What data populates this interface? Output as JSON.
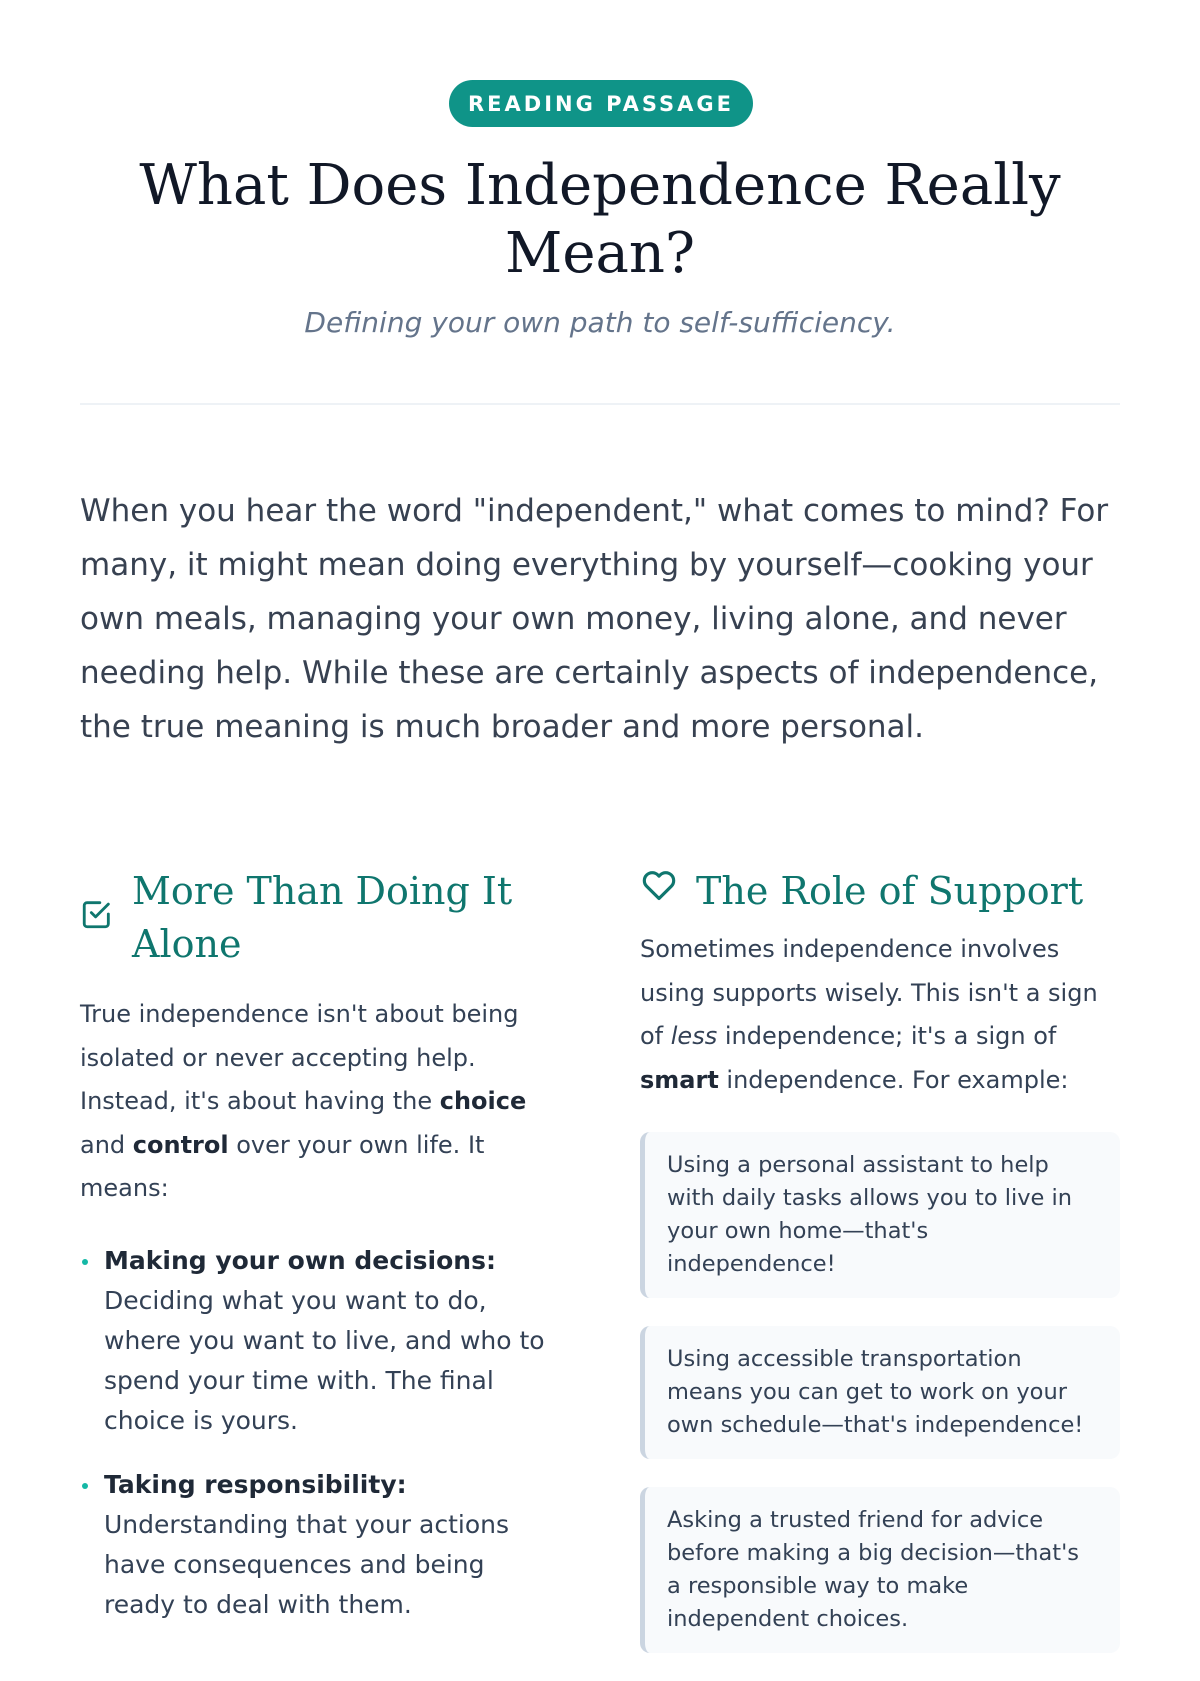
{
  "badge": "READING PASSAGE",
  "title": "What Does Independence Really Mean?",
  "subtitle": "Defining your own path to self-sufficiency.",
  "intro": "When you hear the word \"independent,\" what comes to mind? For many, it might mean doing everything by yourself—cooking your own meals, managing your own money, living alone, and never needing help. While these are certainly aspects of independence, the true meaning is much broader and more personal.",
  "left": {
    "heading": "More Than Doing It Alone",
    "icon": "checkbox-icon",
    "p1": "True independence isn't about being isolated or never accepting help. Instead, it's about having the ",
    "b1": "choice",
    "p2": " and ",
    "b2": "control",
    "p3": " over your own life. It means:",
    "items": [
      {
        "title": "Making your own decisions:",
        "text": " Deciding what you want to do, where you want to live, and who to spend your time with. The final choice is yours."
      },
      {
        "title": "Taking responsibility:",
        "text": " Understanding that your actions have consequences and being ready to deal with them."
      }
    ]
  },
  "right": {
    "heading": "The Role of Support",
    "icon": "heart-icon",
    "p1": "Sometimes independence involves using supports wisely. This isn't a sign of ",
    "i1": "less",
    "p2": " independence; it's a sign of ",
    "b1": "smart",
    "p3": " independence. For example:",
    "cards": [
      "Using a personal assistant to help with daily tasks allows you to live in your own home—that's independence!",
      "Using accessible transportation means you can get to work on your own schedule—that's independence!",
      "Asking a trusted friend for advice before making a big decision—that's a responsible way to make independent choices."
    ]
  },
  "colors": {
    "accent": "#0f9488",
    "heading": "#0f766e"
  }
}
